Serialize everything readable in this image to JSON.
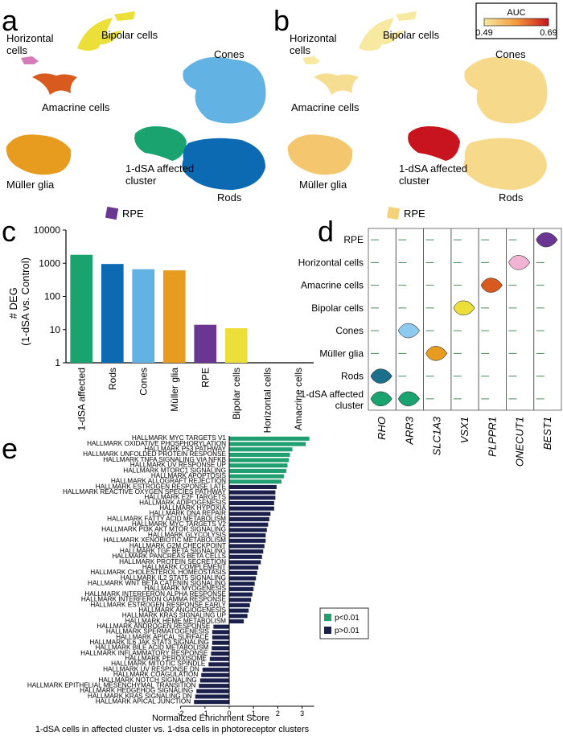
{
  "panels": {
    "a": "a",
    "b": "b",
    "c": "c",
    "d": "d",
    "e": "e"
  },
  "colors": {
    "horizontal": "#d77bb8",
    "bipolar": "#ecdf3a",
    "amacrine": "#d95a1e",
    "cones": "#62b2e3",
    "muller": "#e89c1f",
    "rods": "#0b6ab1",
    "affected": "#1aa36f",
    "rpe": "#6b3592",
    "auc_low": "#f7e9a0",
    "auc_mid": "#f4c06b",
    "auc_high": "#c8141e",
    "sig": "#20a070",
    "nonsig": "#1a1f4b"
  },
  "panel_a": {
    "labels": {
      "horizontal": "Horizontal\ncells",
      "bipolar": "Bipolar cells",
      "amacrine": "Amacrine cells",
      "cones": "Cones",
      "muller": "Müller glia",
      "affected": "1-dSA affected\ncluster",
      "rods": "Rods",
      "rpe": "RPE"
    }
  },
  "panel_b": {
    "legend_title": "AUC",
    "legend_min": "0.49",
    "legend_max": "0.69",
    "labels": {
      "horizontal": "Horizontal\ncells",
      "bipolar": "Bipolar cells",
      "amacrine": "Amacrine cells",
      "cones": "Cones",
      "muller": "Müller glia",
      "affected": "1-dSA affected\ncluster",
      "rods": "Rods",
      "rpe": "RPE"
    }
  },
  "chart_data": [
    {
      "id": "c",
      "type": "bar",
      "title": "",
      "xlabel": "",
      "ylabel": "# DEG\n(1-dSA vs. Control)",
      "yscale": "log",
      "ylim": [
        1,
        10000
      ],
      "yticks": [
        "1",
        "10",
        "100",
        "1000",
        "10000"
      ],
      "categories": [
        "1-dSA affected",
        "Rods",
        "Cones",
        "Müller glia",
        "RPE",
        "Bipolar cells",
        "Horizontal cells",
        "Amacrine cells"
      ],
      "values": [
        1800,
        950,
        660,
        610,
        14,
        11,
        1,
        1
      ]
    },
    {
      "id": "d",
      "type": "violin",
      "rows": [
        "RPE",
        "Horizontal cells",
        "Amacrine cells",
        "Bipolar cells",
        "Cones",
        "Müller glia",
        "Rods",
        "1-dSA affected\ncluster"
      ],
      "genes": [
        "RHO",
        "ARR3",
        "SLC1A3",
        "VSX1",
        "PLPPR1",
        "ONECUT1",
        "BEST1"
      ],
      "high_expression": [
        {
          "gene": "BEST1",
          "row": "RPE"
        },
        {
          "gene": "ONECUT1",
          "row": "Horizontal cells"
        },
        {
          "gene": "PLPPR1",
          "row": "Amacrine cells"
        },
        {
          "gene": "VSX1",
          "row": "Bipolar cells"
        },
        {
          "gene": "ARR3",
          "row": "Cones"
        },
        {
          "gene": "SLC1A3",
          "row": "Müller glia"
        },
        {
          "gene": "RHO",
          "row": "Rods"
        },
        {
          "gene": "RHO",
          "row": "1-dSA affected\ncluster"
        },
        {
          "gene": "ARR3",
          "row": "1-dSA affected\ncluster"
        }
      ]
    },
    {
      "id": "e",
      "type": "bar",
      "orientation": "horizontal",
      "xlabel": "Normalized Enrichment Score",
      "subtitle": "1-dSA cells in affected cluster vs. 1-dsa cells in photoreceptor clusters",
      "xlim": [
        -2,
        3.5
      ],
      "xticks": [
        "-2",
        "-1",
        "0",
        "1",
        "2",
        "3"
      ],
      "legend": [
        {
          "label": "p<0.01",
          "key": "sig"
        },
        {
          "label": "p>0.01",
          "key": "nonsig"
        }
      ],
      "categories": [
        "HALLMARK MYC TARGETS V1",
        "HALLMARK OXIDATIVE PHOSPHORYLATION",
        "HALLMARK P53 PATHWAY",
        "HALLMARK UNFOLDED PROTEIN RESPONSE",
        "HALLMARK TNFA SIGNALING VIA NFKB",
        "HALLMARK UV RESPONSE UP",
        "HALLMARK MTORC1 SIGNALING",
        "HALLMARK APOPTOSIS",
        "HALLMARK ALLOGRAFT REJECTION",
        "HALLMARK ESTROGEN RESPONSE LATE",
        "HALLMARK REACTIVE OXYGEN SPECIES PATHWAY",
        "HALLMARK E2F TARGETS",
        "HALLMARK ADIPOGENESIS",
        "HALLMARK HYPOXIA",
        "HALLMARK DNA REPAIR",
        "HALLMARK FATTY ACID METABOLISM",
        "HALLMARK MYC TARGETS V2",
        "HALLMARK PI3K AKT MTOR SIGNALING",
        "HALLMARK GLYCOLYSIS",
        "HALLMARK XENOBIOTIC METABOLISM",
        "HALLMARK G2M CHECKPOINT",
        "HALLMARK TGF BETA SIGNALING",
        "HALLMARK PANCREAS BETA CELLS",
        "HALLMARK PROTEIN SECRETION",
        "HALLMARK COMPLEMENT",
        "HALLMARK CHOLESTEROL HOMEOSTASIS",
        "HALLMARK IL2 STAT5 SIGNALING",
        "HALLMARK WNT BETA CATENIN SIGNALING",
        "HALLMARK MYOGENESIS",
        "HALLMARK INTERFERON ALPHA RESPONSE",
        "HALLMARK INTERFERON GAMMA RESPONSE",
        "HALLMARK ESTROGEN RESPONSE EARLY",
        "HALLMARK ANGIOGENESIS",
        "HALLMARK KRAS SIGNALING UP",
        "HALLMARK HEME METABOLISM",
        "HALLMARK ANDROGEN RESPONSE",
        "HALLMARK SPERMATOGENESIS",
        "HALLMARK APICAL SURFACE",
        "HALLMARK IL6 JAK STAT3 SIGNALING",
        "HALLMARK BILE ACID METABOLISM",
        "HALLMARK INFLAMMATORY RESPONSE",
        "HALLMARK PEROXISOME",
        "HALLMARK MITOTIC SPINDLE",
        "HALLMARK UV RESPONSE DN",
        "HALLMARK COAGULATION",
        "HALLMARK NOTCH SIGNALING",
        "HALLMARK EPITHELIAL MESENCHYMAL TRANSITION",
        "HALLMARK HEDGEHOG SIGNALING",
        "HALLMARK KRAS SIGNALING DN",
        "HALLMARK APICAL JUNCTION"
      ],
      "values": [
        3.3,
        3.15,
        2.6,
        2.5,
        2.45,
        2.4,
        2.35,
        2.25,
        2.15,
        1.95,
        1.9,
        1.9,
        1.85,
        1.85,
        1.7,
        1.65,
        1.6,
        1.55,
        1.5,
        1.5,
        1.45,
        1.4,
        1.35,
        1.3,
        1.2,
        1.15,
        1.1,
        1.05,
        1.0,
        0.95,
        0.9,
        0.85,
        0.8,
        0.75,
        0.6,
        -0.65,
        -0.7,
        -0.7,
        -0.7,
        -0.72,
        -0.75,
        -0.8,
        -0.85,
        -1.1,
        -1.15,
        -1.2,
        -1.25,
        -1.35,
        -1.4,
        -1.45
      ],
      "significant": [
        true,
        true,
        true,
        true,
        true,
        true,
        true,
        true,
        true,
        false,
        false,
        false,
        false,
        false,
        false,
        false,
        false,
        false,
        false,
        false,
        false,
        false,
        false,
        false,
        false,
        false,
        false,
        false,
        false,
        false,
        false,
        false,
        false,
        false,
        false,
        false,
        false,
        false,
        false,
        false,
        false,
        false,
        false,
        false,
        false,
        false,
        false,
        false,
        false,
        false
      ]
    }
  ]
}
